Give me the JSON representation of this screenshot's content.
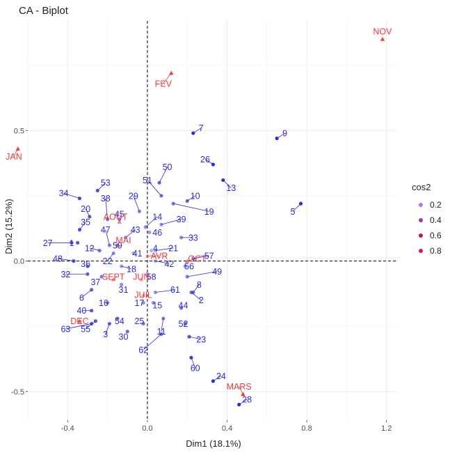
{
  "chart_data": {
    "type": "scatter",
    "title": "CA - Biplot",
    "xlabel": "Dim1 (18.1%)",
    "ylabel": "Dim2 (15.2%)",
    "xlim": [
      -0.6,
      1.25
    ],
    "ylim": [
      -0.61,
      0.92
    ],
    "x_ticks": [
      -0.4,
      0.0,
      0.4,
      0.8,
      1.2
    ],
    "x_tick_labels": [
      "-0.4",
      "0.0",
      "0.4",
      "0.8",
      "1.2"
    ],
    "y_ticks": [
      -0.5,
      0.0,
      0.5
    ],
    "y_tick_labels": [
      "-0.5",
      "0.0",
      "0.5"
    ],
    "grid": true,
    "reference_lines": {
      "x": 0,
      "y": 0,
      "style": "dashed"
    },
    "row_color": "#2b2bd9",
    "col_color": "#f03b3b",
    "legend": {
      "title": "cos2",
      "position": "right",
      "items": [
        {
          "label": "0.2",
          "color": "#b07ad0"
        },
        {
          "label": "0.4",
          "color": "#a033b5"
        },
        {
          "label": "0.6",
          "color": "#c0135f"
        },
        {
          "label": "0.8",
          "color": "#e0144e"
        }
      ]
    },
    "rows": [
      {
        "label": "1",
        "x": -0.35,
        "y": 0.07,
        "lx": -0.38,
        "ly": 0.07
      },
      {
        "label": "2",
        "x": 0.22,
        "y": -0.12,
        "lx": 0.27,
        "ly": -0.15
      },
      {
        "label": "3",
        "x": -0.19,
        "y": -0.24,
        "lx": -0.21,
        "ly": -0.28
      },
      {
        "label": "4",
        "x": 0.02,
        "y": 0.04,
        "lx": 0.04,
        "ly": 0.05
      },
      {
        "label": "5",
        "x": 0.77,
        "y": 0.22,
        "lx": 0.73,
        "ly": 0.19
      },
      {
        "label": "6",
        "x": -0.28,
        "y": -0.11,
        "lx": -0.33,
        "ly": -0.14
      },
      {
        "label": "7",
        "x": 0.23,
        "y": 0.49,
        "lx": 0.27,
        "ly": 0.51
      },
      {
        "label": "8",
        "x": 0.23,
        "y": -0.12,
        "lx": 0.26,
        "ly": -0.09
      },
      {
        "label": "9",
        "x": 0.65,
        "y": 0.47,
        "lx": 0.69,
        "ly": 0.49
      },
      {
        "label": "10",
        "x": 0.2,
        "y": 0.23,
        "lx": 0.24,
        "ly": 0.25
      },
      {
        "label": "11",
        "x": 0.08,
        "y": -0.22,
        "lx": 0.07,
        "ly": -0.27
      },
      {
        "label": "12",
        "x": -0.24,
        "y": 0.04,
        "lx": -0.29,
        "ly": 0.05
      },
      {
        "label": "13",
        "x": 0.38,
        "y": 0.31,
        "lx": 0.42,
        "ly": 0.28
      },
      {
        "label": "14",
        "x": -0.01,
        "y": 0.13,
        "lx": 0.05,
        "ly": 0.17
      },
      {
        "label": "15",
        "x": 0.03,
        "y": -0.16,
        "lx": 0.05,
        "ly": -0.17
      },
      {
        "label": "16",
        "x": -0.2,
        "y": -0.16,
        "lx": -0.22,
        "ly": -0.16
      },
      {
        "label": "17",
        "x": -0.02,
        "y": -0.16,
        "lx": -0.04,
        "ly": -0.16
      },
      {
        "label": "18",
        "x": -0.13,
        "y": -0.02,
        "lx": -0.08,
        "ly": -0.03
      },
      {
        "label": "19",
        "x": 0.13,
        "y": 0.22,
        "lx": 0.31,
        "ly": 0.19
      },
      {
        "label": "20",
        "x": -0.29,
        "y": 0.17,
        "lx": -0.31,
        "ly": 0.2
      },
      {
        "label": "21",
        "x": 0.04,
        "y": 0.04,
        "lx": 0.13,
        "ly": 0.05
      },
      {
        "label": "22",
        "x": -0.17,
        "y": 0.03,
        "lx": -0.2,
        "ly": 0.0
      },
      {
        "label": "23",
        "x": 0.21,
        "y": -0.29,
        "lx": 0.27,
        "ly": -0.3
      },
      {
        "label": "24",
        "x": 0.33,
        "y": -0.46,
        "lx": 0.37,
        "ly": -0.44
      },
      {
        "label": "25",
        "x": -0.02,
        "y": -0.24,
        "lx": -0.04,
        "ly": -0.23
      },
      {
        "label": "26",
        "x": 0.33,
        "y": 0.37,
        "lx": 0.29,
        "ly": 0.39
      },
      {
        "label": "27",
        "x": -0.38,
        "y": 0.07,
        "lx": -0.5,
        "ly": 0.07
      },
      {
        "label": "28",
        "x": 0.46,
        "y": -0.55,
        "lx": 0.5,
        "ly": -0.53
      },
      {
        "label": "29",
        "x": -0.04,
        "y": 0.19,
        "lx": -0.07,
        "ly": 0.25
      },
      {
        "label": "30",
        "x": -0.1,
        "y": -0.27,
        "lx": -0.12,
        "ly": -0.29
      },
      {
        "label": "31",
        "x": -0.13,
        "y": -0.09,
        "lx": -0.12,
        "ly": -0.11
      },
      {
        "label": "32",
        "x": -0.3,
        "y": -0.05,
        "lx": -0.41,
        "ly": -0.05
      },
      {
        "label": "33",
        "x": 0.17,
        "y": 0.09,
        "lx": 0.23,
        "ly": 0.09
      },
      {
        "label": "34",
        "x": -0.34,
        "y": 0.24,
        "lx": -0.42,
        "ly": 0.26
      },
      {
        "label": "35",
        "x": -0.34,
        "y": 0.12,
        "lx": -0.31,
        "ly": 0.15
      },
      {
        "label": "36",
        "x": -0.3,
        "y": -0.02,
        "lx": -0.31,
        "ly": -0.01
      },
      {
        "label": "37",
        "x": -0.23,
        "y": -0.06,
        "lx": -0.26,
        "ly": -0.08
      },
      {
        "label": "38",
        "x": -0.2,
        "y": 0.16,
        "lx": -0.21,
        "ly": 0.24
      },
      {
        "label": "39",
        "x": 0.07,
        "y": 0.14,
        "lx": 0.17,
        "ly": 0.16
      },
      {
        "label": "40",
        "x": -0.28,
        "y": -0.19,
        "lx": -0.33,
        "ly": -0.19
      },
      {
        "label": "41",
        "x": -0.07,
        "y": 0.03,
        "lx": -0.05,
        "ly": 0.03
      },
      {
        "label": "42",
        "x": 0.04,
        "y": 0.0,
        "lx": 0.11,
        "ly": -0.01
      },
      {
        "label": "43",
        "x": -0.11,
        "y": 0.09,
        "lx": -0.06,
        "ly": 0.12
      },
      {
        "label": "44",
        "x": 0.17,
        "y": -0.18,
        "lx": 0.18,
        "ly": -0.17
      },
      {
        "label": "45",
        "x": -0.14,
        "y": 0.16,
        "lx": -0.14,
        "ly": 0.18
      },
      {
        "label": "46",
        "x": 0.01,
        "y": 0.11,
        "lx": 0.05,
        "ly": 0.11
      },
      {
        "label": "47",
        "x": -0.19,
        "y": 0.06,
        "lx": -0.21,
        "ly": 0.12
      },
      {
        "label": "48",
        "x": -0.37,
        "y": 0.0,
        "lx": -0.45,
        "ly": 0.01
      },
      {
        "label": "49",
        "x": 0.2,
        "y": -0.06,
        "lx": 0.35,
        "ly": -0.04
      },
      {
        "label": "50",
        "x": 0.06,
        "y": 0.3,
        "lx": 0.1,
        "ly": 0.36
      },
      {
        "label": "51",
        "x": 0.07,
        "y": 0.25,
        "lx": 0.0,
        "ly": 0.31
      },
      {
        "label": "52",
        "x": 0.19,
        "y": -0.24,
        "lx": 0.18,
        "ly": -0.24
      },
      {
        "label": "53",
        "x": -0.25,
        "y": 0.27,
        "lx": -0.21,
        "ly": 0.3
      },
      {
        "label": "54",
        "x": -0.15,
        "y": -0.22,
        "lx": -0.14,
        "ly": -0.23
      },
      {
        "label": "55",
        "x": -0.26,
        "y": -0.23,
        "lx": -0.31,
        "ly": -0.26
      },
      {
        "label": "56",
        "x": 0.19,
        "y": -0.02,
        "lx": 0.21,
        "ly": -0.02
      },
      {
        "label": "57",
        "x": 0.23,
        "y": 0.01,
        "lx": 0.31,
        "ly": 0.02
      },
      {
        "label": "58",
        "x": 0.0,
        "y": -0.05,
        "lx": 0.02,
        "ly": -0.06
      },
      {
        "label": "59",
        "x": -0.15,
        "y": 0.06,
        "lx": -0.15,
        "ly": 0.06
      },
      {
        "label": "60",
        "x": 0.22,
        "y": -0.37,
        "lx": 0.24,
        "ly": -0.41
      },
      {
        "label": "61",
        "x": 0.04,
        "y": -0.12,
        "lx": 0.14,
        "ly": -0.11
      },
      {
        "label": "62",
        "x": 0.07,
        "y": -0.28,
        "lx": -0.02,
        "ly": -0.34
      },
      {
        "label": "63",
        "x": -0.28,
        "y": -0.24,
        "lx": -0.41,
        "ly": -0.26
      }
    ],
    "columns": [
      {
        "label": "JAN",
        "x": -0.65,
        "y": 0.43,
        "lx": -0.67,
        "ly": 0.4
      },
      {
        "label": "FEV",
        "x": 0.12,
        "y": 0.72,
        "lx": 0.08,
        "ly": 0.68
      },
      {
        "label": "NOV",
        "x": 1.18,
        "y": 0.85,
        "lx": 1.18,
        "ly": 0.88
      },
      {
        "label": "MARS",
        "x": 0.48,
        "y": -0.51,
        "lx": 0.46,
        "ly": -0.48
      },
      {
        "label": "AOUT",
        "x": -0.14,
        "y": 0.15,
        "lx": -0.16,
        "ly": 0.17
      },
      {
        "label": "MAI",
        "x": -0.15,
        "y": 0.06,
        "lx": -0.12,
        "ly": 0.08
      },
      {
        "label": "AVR",
        "x": 0.0,
        "y": 0.02,
        "lx": 0.06,
        "ly": 0.02
      },
      {
        "label": "OCT",
        "x": 0.2,
        "y": 0.0,
        "lx": 0.25,
        "ly": 0.01
      },
      {
        "label": "SEPT",
        "x": -0.17,
        "y": -0.07,
        "lx": -0.17,
        "ly": -0.06
      },
      {
        "label": "JUN",
        "x": -0.03,
        "y": -0.07,
        "lx": -0.03,
        "ly": -0.06
      },
      {
        "label": "JUIL",
        "x": -0.02,
        "y": -0.13,
        "lx": -0.02,
        "ly": -0.13
      },
      {
        "label": "DEC",
        "x": -0.34,
        "y": -0.23,
        "lx": -0.34,
        "ly": -0.23
      }
    ]
  }
}
